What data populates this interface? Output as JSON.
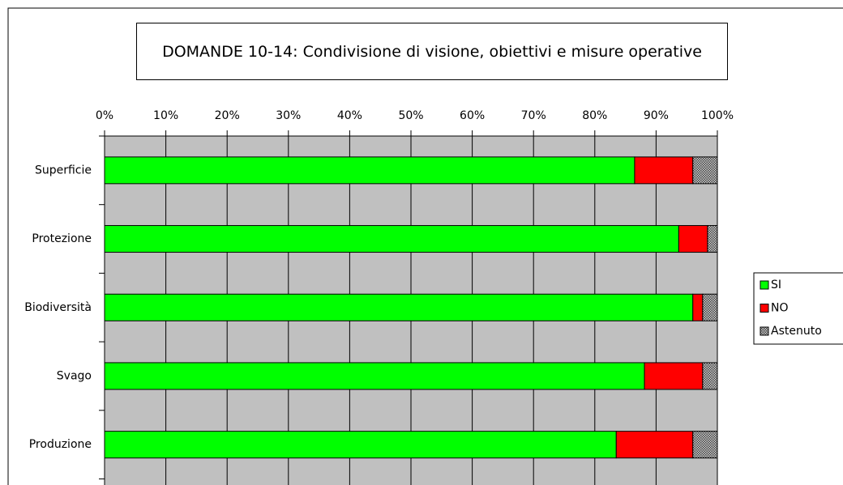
{
  "chart_data": {
    "type": "stacked-bar-horizontal",
    "title": "DOMANDE 10-14: Condivisione di visione, obiettivi e misure operative",
    "categories": [
      "Superficie",
      "Protezione",
      "Biodiversità",
      "Svago",
      "Produzione"
    ],
    "series": [
      {
        "name": "SI",
        "color": "#00ff00",
        "values": [
          86.5,
          93.7,
          96.0,
          88.1,
          83.5
        ]
      },
      {
        "name": "NO",
        "color": "#ff0000",
        "values": [
          9.5,
          4.7,
          1.6,
          9.5,
          12.5
        ]
      },
      {
        "name": "Astenuto",
        "color": "#808080",
        "pattern": "crosshatch",
        "values": [
          4.0,
          1.6,
          2.4,
          2.4,
          4.0
        ]
      }
    ],
    "xlim": [
      0,
      100
    ],
    "xticks": [
      {
        "value": 0,
        "label": "0%"
      },
      {
        "value": 10,
        "label": "10%"
      },
      {
        "value": 20,
        "label": "20%"
      },
      {
        "value": 30,
        "label": "30%"
      },
      {
        "value": 40,
        "label": "40%"
      },
      {
        "value": 50,
        "label": "50%"
      },
      {
        "value": 60,
        "label": "60%"
      },
      {
        "value": 70,
        "label": "70%"
      },
      {
        "value": 80,
        "label": "80%"
      },
      {
        "value": 90,
        "label": "90%"
      },
      {
        "value": 100,
        "label": "100%"
      }
    ],
    "grid": true,
    "legend": "right"
  }
}
